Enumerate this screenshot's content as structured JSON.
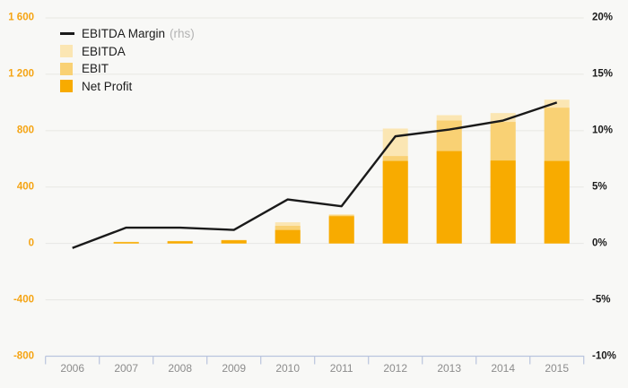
{
  "chart_data": {
    "type": "bar",
    "subtype": "overlapping bars with line on secondary axis",
    "title": "",
    "categories": [
      "2006",
      "2007",
      "2008",
      "2009",
      "2010",
      "2011",
      "2012",
      "2013",
      "2014",
      "2015"
    ],
    "series": [
      {
        "name": "EBITDA",
        "type": "bar",
        "axis": "left",
        "color": "#fbe6b3",
        "values": [
          0,
          12,
          18,
          26,
          150,
          207,
          815,
          910,
          925,
          1020
        ]
      },
      {
        "name": "EBIT",
        "type": "bar",
        "axis": "left",
        "color": "#f9d174",
        "values": [
          0,
          10,
          16,
          23,
          125,
          200,
          620,
          872,
          862,
          963
        ]
      },
      {
        "name": "Net Profit",
        "type": "bar",
        "axis": "left",
        "color": "#f8ab00",
        "values": [
          0,
          9,
          15,
          22,
          95,
          193,
          585,
          655,
          588,
          585
        ]
      },
      {
        "name": "EBITDA Margin",
        "type": "line",
        "axis": "right",
        "color": "#1a1a1a",
        "values": [
          -0.4,
          1.4,
          1.4,
          1.2,
          3.9,
          3.3,
          9.5,
          10.1,
          10.9,
          12.5
        ]
      }
    ],
    "left_axis": {
      "lim": [
        -800,
        1600
      ],
      "ticks": [
        "1 600",
        "1 200",
        "800",
        "400",
        "0",
        "-400",
        "-800"
      ],
      "label_color": "#f5a413"
    },
    "right_axis": {
      "lim": [
        -10,
        20
      ],
      "ticks": [
        "20%",
        "15%",
        "10%",
        "5%",
        "0%",
        "-5%",
        "-10%"
      ],
      "label_color": "#1a1a1a"
    },
    "x_axis": {
      "labels": [
        "2006",
        "2007",
        "2008",
        "2009",
        "2010",
        "2011",
        "2012",
        "2013",
        "2014",
        "2015"
      ],
      "label_color": "#8c8c8c",
      "axis_color": "#b9c4de"
    },
    "grid": true,
    "gridline_color": "#e7e7e3",
    "background": "#f8f8f6",
    "legend_position": "top-left",
    "legend": [
      {
        "label": "EBITDA Margin",
        "suffix": "(rhs)",
        "swatch": "line",
        "color": "#1a1a1a"
      },
      {
        "label": "EBITDA",
        "suffix": "",
        "swatch": "square",
        "color": "#fbe6b3"
      },
      {
        "label": "EBIT",
        "suffix": "",
        "swatch": "square",
        "color": "#f9d174"
      },
      {
        "label": "Net Profit",
        "suffix": "",
        "swatch": "square",
        "color": "#f8ab00"
      }
    ]
  }
}
